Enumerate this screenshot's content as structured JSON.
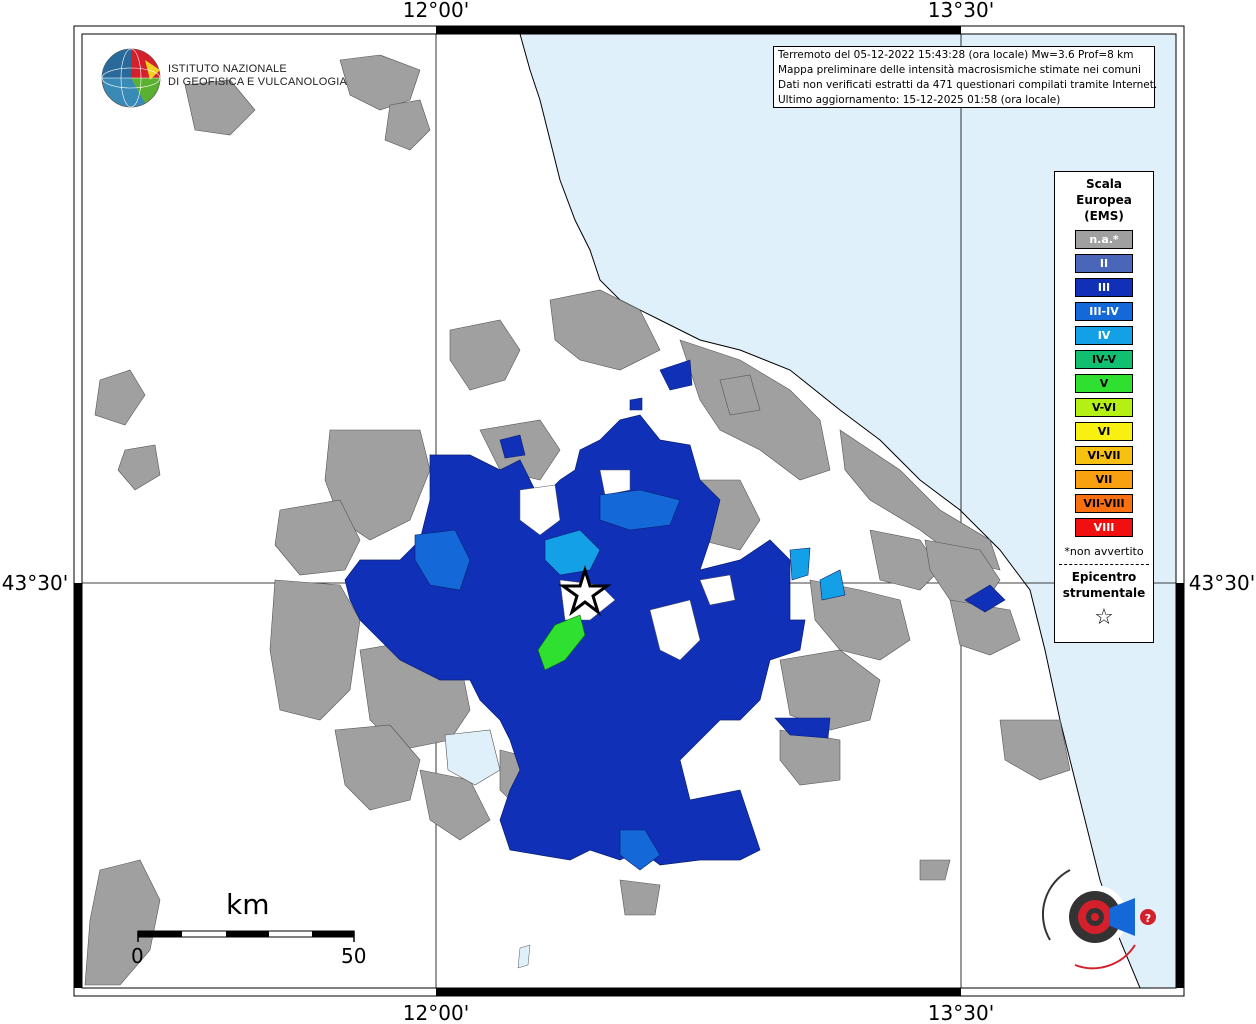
{
  "map": {
    "coords": {
      "top_left": "12°00'",
      "top_right": "13°30'",
      "bottom_left": "12°00'",
      "bottom_right": "13°30'",
      "left": "43°30'",
      "right": "43°30'"
    }
  },
  "logo": {
    "line1": "ISTITUTO NAZIONALE",
    "line2": "DI GEOFISICA E VULCANOLOGIA"
  },
  "info": {
    "line1": "Terremoto del 05-12-2022 15:43:28 (ora locale) Mw=3.6 Prof=8 km",
    "line2": "Mappa preliminare delle intensità macrosismiche stimate nei comuni",
    "line3": "Dati non verificati estratti da 471 questionari compilati tramite Internet.",
    "line4": "Ultimo aggiornamento: 15-12-2025 01:58 (ora locale)"
  },
  "legend": {
    "title1": "Scala",
    "title2": "Europea",
    "title3": "(EMS)",
    "items": [
      {
        "label": "n.a.*",
        "color": "#a0a0a0",
        "text": "#ffffff"
      },
      {
        "label": "II",
        "color": "#4a66b8",
        "text": "#ffffff"
      },
      {
        "label": "III",
        "color": "#1030b8",
        "text": "#ffffff"
      },
      {
        "label": "III-IV",
        "color": "#1468d8",
        "text": "#ffffff"
      },
      {
        "label": "IV",
        "color": "#14a0e6",
        "text": "#ffffff"
      },
      {
        "label": "IV-V",
        "color": "#10c070",
        "text": "#000000"
      },
      {
        "label": "V",
        "color": "#30e030",
        "text": "#000000"
      },
      {
        "label": "V-VI",
        "color": "#b4f014",
        "text": "#000000"
      },
      {
        "label": "VI",
        "color": "#f8f010",
        "text": "#000000"
      },
      {
        "label": "VI-VII",
        "color": "#f8c010",
        "text": "#000000"
      },
      {
        "label": "VII",
        "color": "#f8a010",
        "text": "#000000"
      },
      {
        "label": "VII-VIII",
        "color": "#f87010",
        "text": "#000000"
      },
      {
        "label": "VIII",
        "color": "#f01010",
        "text": "#ffffff"
      }
    ],
    "note": "*non avvertito",
    "epicentre1": "Epicentro",
    "epicentre2": "strumentale",
    "star": "☆"
  },
  "scale": {
    "unit": "km",
    "min": "0",
    "max": "50"
  },
  "colors": {
    "sea": "#dff0fb",
    "gray_comuni": "#a0a0a0",
    "blue_III": "#1030b8",
    "blue_IIIIV": "#1468d8",
    "blue_IV": "#14a0e6",
    "green_V": "#30e030"
  }
}
